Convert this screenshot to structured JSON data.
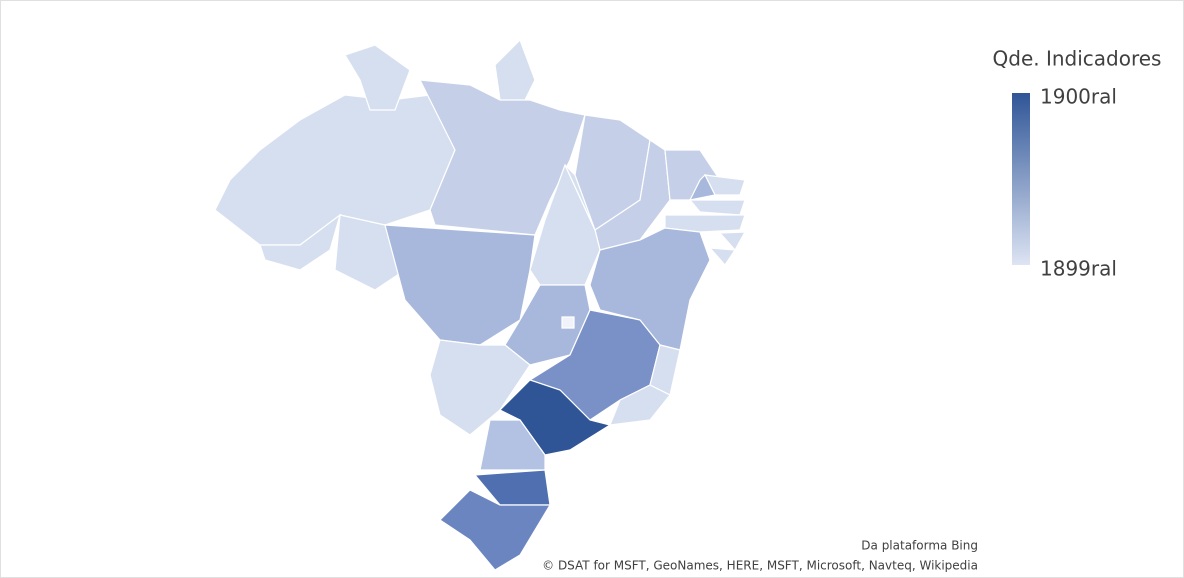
{
  "map": {
    "legend": {
      "title": "Qde. Indicadores",
      "max_label": "1900ral",
      "min_label": "1899ral",
      "colors": [
        "#2f5597",
        "#dde4f3"
      ]
    },
    "attribution": {
      "source": "Da plataforma Bing",
      "credits": "© DSAT for MSFT, GeoNames, HERE, MSFT, Microsoft, Navteq, Wikipedia"
    },
    "region_colors": [
      "#d6dff0",
      "#d6dff0",
      "#d6dff0",
      "#c5d0e8",
      "#d6dff0",
      "#d6dff0",
      "#a8b8dc",
      "#c5d0e8",
      "#c5d0e8",
      "#c5d0e8",
      "#d6dff0",
      "#d6dff0",
      "#d6dff0",
      "#d6dff0",
      "#d6dff0",
      "#d6dff0",
      "#d6dff0",
      "#a8b8dc",
      "#a8b8dc",
      "#f0f3fa",
      "#d6dff0",
      "#7a91c8",
      "#d6dff0",
      "#d6dff0",
      "#2f5597",
      "#b3c2e3",
      "#4f6fb0",
      "#6a85c0",
      "#a8b8dc"
    ]
  }
}
